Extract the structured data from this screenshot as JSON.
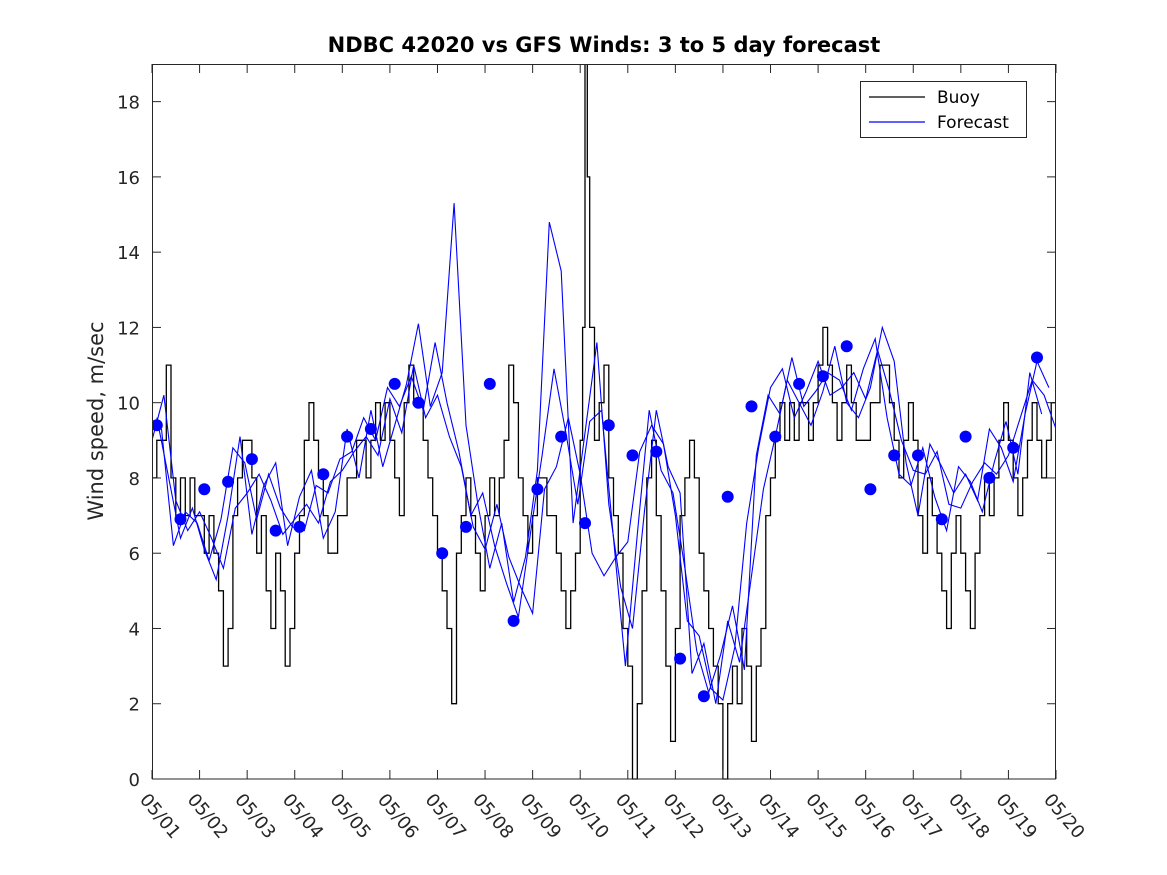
{
  "chart_data": {
    "type": "line",
    "title": "NDBC 42020 vs GFS Winds: 3 to 5 day forecast",
    "xlabel": "",
    "ylabel": "Wind speed, m/sec",
    "xlim": [
      0,
      19
    ],
    "ylim": [
      0,
      19
    ],
    "x_tick_labels": [
      "05/01",
      "05/02",
      "05/03",
      "05/04",
      "05/05",
      "05/06",
      "05/07",
      "05/08",
      "05/09",
      "05/10",
      "05/11",
      "05/12",
      "05/13",
      "05/14",
      "05/15",
      "05/16",
      "05/17",
      "05/18",
      "05/19",
      "05/20"
    ],
    "y_ticks": [
      0,
      2,
      4,
      6,
      8,
      10,
      12,
      14,
      16,
      18
    ],
    "grid": false,
    "legend_position": "top-right",
    "legend": [
      "Buoy",
      "Forecast"
    ],
    "colors": {
      "buoy": "#000000",
      "forecast": "#0000ff",
      "axis": "#262626"
    },
    "series": [
      {
        "name": "Buoy",
        "style": "step",
        "color": "#000000",
        "x": [
          0.0,
          0.1,
          0.2,
          0.3,
          0.4,
          0.5,
          0.6,
          0.7,
          0.8,
          0.9,
          1.0,
          1.1,
          1.2,
          1.3,
          1.4,
          1.5,
          1.6,
          1.7,
          1.8,
          1.9,
          2.0,
          2.1,
          2.2,
          2.3,
          2.4,
          2.5,
          2.6,
          2.7,
          2.8,
          2.9,
          3.0,
          3.1,
          3.2,
          3.3,
          3.4,
          3.5,
          3.6,
          3.7,
          3.8,
          3.9,
          4.0,
          4.1,
          4.2,
          4.3,
          4.4,
          4.5,
          4.6,
          4.7,
          4.8,
          4.9,
          5.0,
          5.1,
          5.2,
          5.3,
          5.4,
          5.5,
          5.6,
          5.7,
          5.8,
          5.9,
          6.0,
          6.1,
          6.2,
          6.3,
          6.4,
          6.5,
          6.6,
          6.7,
          6.8,
          6.9,
          7.0,
          7.1,
          7.2,
          7.3,
          7.4,
          7.5,
          7.6,
          7.7,
          7.8,
          7.9,
          8.0,
          8.1,
          8.2,
          8.3,
          8.4,
          8.5,
          8.6,
          8.7,
          8.8,
          8.9,
          9.0,
          9.05,
          9.1,
          9.15,
          9.2,
          9.3,
          9.4,
          9.5,
          9.6,
          9.7,
          9.8,
          9.9,
          10.0,
          10.1,
          10.2,
          10.3,
          10.4,
          10.5,
          10.6,
          10.7,
          10.8,
          10.9,
          11.0,
          11.1,
          11.2,
          11.3,
          11.4,
          11.5,
          11.6,
          11.7,
          11.8,
          11.9,
          12.0,
          12.1,
          12.2,
          12.3,
          12.4,
          12.5,
          12.6,
          12.7,
          12.8,
          12.9,
          13.0,
          13.1,
          13.2,
          13.3,
          13.4,
          13.5,
          13.6,
          13.7,
          13.8,
          13.9,
          14.0,
          14.1,
          14.2,
          14.3,
          14.4,
          14.5,
          14.6,
          14.7,
          14.8,
          14.9,
          15.0,
          15.1,
          15.2,
          15.3,
          15.4,
          15.5,
          15.6,
          15.7,
          15.8,
          15.9,
          16.0,
          16.1,
          16.2,
          16.3,
          16.4,
          16.5,
          16.6,
          16.7,
          16.8,
          16.9,
          17.0,
          17.1,
          17.2,
          17.3,
          17.4,
          17.5,
          17.6,
          17.7,
          17.8,
          17.9,
          18.0,
          18.1,
          18.2,
          18.3,
          18.4,
          18.5,
          18.6,
          18.7,
          18.8,
          18.9,
          19.0
        ],
        "y": [
          8,
          9,
          9,
          11,
          8,
          7,
          8,
          7,
          8,
          7,
          7,
          6,
          7,
          6,
          5,
          3,
          4,
          7,
          8,
          9,
          9,
          8,
          6,
          7,
          5,
          4,
          6,
          5,
          3,
          4,
          6,
          7,
          9,
          10,
          9,
          8,
          7,
          6,
          6,
          7,
          7,
          8,
          8,
          9,
          9,
          8,
          9,
          10,
          9,
          10,
          9,
          8,
          7,
          10,
          11,
          10,
          10,
          9,
          8,
          7,
          6,
          5,
          4,
          2,
          6,
          7,
          8,
          7,
          6,
          5,
          7,
          8,
          7,
          8,
          9,
          11,
          10,
          8,
          7,
          6,
          7,
          8,
          8,
          7,
          7,
          6,
          5,
          4,
          5,
          6,
          9,
          12,
          19,
          16,
          12,
          9,
          10,
          11,
          8,
          7,
          6,
          4,
          3,
          0,
          2,
          5,
          8,
          9,
          7,
          5,
          3,
          1,
          4,
          7,
          8,
          9,
          8,
          6,
          5,
          4,
          3,
          2,
          0,
          2,
          3,
          2,
          4,
          3,
          1,
          3,
          4,
          7,
          8,
          9,
          10,
          9,
          10,
          9,
          10,
          10,
          9,
          10,
          11,
          12,
          11,
          10,
          9,
          10,
          11,
          10,
          9,
          9,
          9,
          10,
          10,
          11,
          11,
          10,
          9,
          8,
          9,
          10,
          9,
          7,
          6,
          8,
          7,
          6,
          5,
          4,
          6,
          7,
          6,
          5,
          4,
          6,
          7,
          8,
          7,
          8,
          9,
          10,
          9,
          8,
          7,
          8,
          9,
          10,
          9,
          8,
          9,
          10,
          9
        ]
      },
      {
        "name": "Forecast",
        "style": "lines-with-markers",
        "color": "#0000ff",
        "lines": [
          {
            "x": [
              0.0,
              0.25,
              0.5,
              0.75,
              1.0,
              1.25,
              1.5,
              1.75,
              2.0,
              2.25,
              2.5,
              2.75,
              3.0,
              3.25,
              3.5,
              3.75,
              4.0,
              4.25,
              4.5,
              4.75,
              5.0,
              5.25,
              5.5,
              5.75,
              6.0,
              6.25,
              6.5,
              6.75,
              7.0,
              7.25,
              7.5,
              7.75,
              8.0,
              8.25,
              8.5,
              8.75,
              9.0,
              9.25,
              9.5,
              9.75,
              10.0,
              10.25,
              10.5,
              10.75,
              11.0,
              11.25,
              11.5,
              11.75,
              12.0,
              12.25,
              12.5,
              12.75,
              13.0,
              13.25,
              13.5,
              13.75,
              14.0,
              14.25,
              14.5,
              14.75,
              15.0,
              15.25,
              15.5,
              15.75,
              16.0,
              16.25,
              16.5,
              16.75,
              17.0,
              17.25,
              17.5,
              17.75,
              18.0,
              18.25,
              18.5,
              18.75,
              19.0
            ],
            "y": [
              9.0,
              10.2,
              7.4,
              6.6,
              7.1,
              6.4,
              5.6,
              7.2,
              7.6,
              8.1,
              7.4,
              6.5,
              6.9,
              7.3,
              6.8,
              7.9,
              8.2,
              8.7,
              9.1,
              8.6,
              10.1,
              9.2,
              11.0,
              9.6,
              10.2,
              9.1,
              8.3,
              6.7,
              6.1,
              7.3,
              5.9,
              5.1,
              4.4,
              7.7,
              8.3,
              9.6,
              8.1,
              6.0,
              5.4,
              5.9,
              6.3,
              8.7,
              9.4,
              8.9,
              7.0,
              4.2,
              3.8,
              2.4,
              2.1,
              3.5,
              6.8,
              8.8,
              10.4,
              10.9,
              9.6,
              10.3,
              11.1,
              10.2,
              10.4,
              10.8,
              10.1,
              11.4,
              10.3,
              9.0,
              8.2,
              8.1,
              8.7,
              7.3,
              7.2,
              7.9,
              8.4,
              8.1,
              8.6,
              9.6,
              10.6,
              10.2,
              9.3
            ]
          },
          {
            "x": [
              0.1,
              0.35,
              0.6,
              0.85,
              1.1,
              1.35,
              1.6,
              1.85,
              2.1,
              2.35,
              2.6,
              2.85,
              3.1,
              3.35,
              3.6,
              3.85,
              4.1,
              4.35,
              4.6,
              4.85,
              5.1,
              5.35,
              5.6,
              5.85,
              6.1,
              6.35,
              6.6,
              6.85,
              7.1,
              7.35,
              7.6,
              7.85,
              8.1,
              8.35,
              8.6,
              8.85,
              9.1,
              9.35,
              9.6,
              9.85,
              10.1,
              10.35,
              10.6,
              10.85,
              11.1,
              11.35,
              11.6,
              11.85,
              12.1,
              12.35,
              12.6,
              12.85,
              13.1,
              13.35,
              13.6,
              13.85,
              14.1,
              14.35,
              14.6,
              14.85,
              15.1,
              15.35,
              15.6,
              15.85,
              16.1,
              16.35,
              16.6,
              16.85,
              17.1,
              17.35,
              17.6,
              17.85,
              18.1,
              18.35,
              18.6,
              18.85
            ],
            "y": [
              9.6,
              8.0,
              6.4,
              7.2,
              6.1,
              5.3,
              7.0,
              9.1,
              6.5,
              7.8,
              8.4,
              6.2,
              7.5,
              8.2,
              6.4,
              7.1,
              9.3,
              8.0,
              9.8,
              8.3,
              9.4,
              10.5,
              12.1,
              9.9,
              10.8,
              15.3,
              9.4,
              7.3,
              5.6,
              6.8,
              4.7,
              5.9,
              8.2,
              14.8,
              13.5,
              6.8,
              9.2,
              11.6,
              7.3,
              5.1,
              4.0,
              7.1,
              9.8,
              8.3,
              7.6,
              2.8,
              3.6,
              2.0,
              4.2,
              3.1,
              5.4,
              7.7,
              9.1,
              10.6,
              10.0,
              9.4,
              10.3,
              11.5,
              10.0,
              9.6,
              10.4,
              12.0,
              11.1,
              8.4,
              7.0,
              8.9,
              8.3,
              7.6,
              8.1,
              7.4,
              9.3,
              8.8,
              7.9,
              9.7,
              11.1,
              10.4
            ]
          },
          {
            "x": [
              0.2,
              0.45,
              0.7,
              0.95,
              1.2,
              1.45,
              1.7,
              1.95,
              2.2,
              2.45,
              2.7,
              2.95,
              3.2,
              3.45,
              3.7,
              3.95,
              4.2,
              4.45,
              4.7,
              4.95,
              5.2,
              5.45,
              5.7,
              5.95,
              6.2,
              6.45,
              6.7,
              6.95,
              7.2,
              7.45,
              7.7,
              7.95,
              8.2,
              8.45,
              8.7,
              8.95,
              9.2,
              9.45,
              9.7,
              9.95,
              10.2,
              10.45,
              10.7,
              10.95,
              11.2,
              11.45,
              11.7,
              11.95,
              12.2,
              12.45,
              12.7,
              12.95,
              13.2,
              13.45,
              13.7,
              13.95,
              14.2,
              14.45,
              14.7,
              14.95,
              15.2,
              15.45,
              15.7,
              15.95,
              16.2,
              16.45,
              16.7,
              16.95,
              17.2,
              17.45,
              17.7,
              17.95,
              18.2,
              18.45,
              18.7
            ],
            "y": [
              9.3,
              6.2,
              7.1,
              6.8,
              5.8,
              6.9,
              8.8,
              8.4,
              6.9,
              8.1,
              7.2,
              6.7,
              6.6,
              7.8,
              7.6,
              8.5,
              8.7,
              9.6,
              9.0,
              10.4,
              9.9,
              10.7,
              9.8,
              11.6,
              10.0,
              8.7,
              7.0,
              7.6,
              6.2,
              5.2,
              4.3,
              6.5,
              8.6,
              10.9,
              9.2,
              7.3,
              9.5,
              9.8,
              6.4,
              3.0,
              6.5,
              9.8,
              8.2,
              7.6,
              5.6,
              3.4,
              2.3,
              3.3,
              4.6,
              2.9,
              8.6,
              10.2,
              9.7,
              11.2,
              9.9,
              10.3,
              10.8,
              10.6,
              9.8,
              10.9,
              11.7,
              9.6,
              8.1,
              7.8,
              8.8,
              7.5,
              6.6,
              8.3,
              7.9,
              7.1,
              8.4,
              9.5,
              8.1,
              10.8,
              9.7
            ]
          }
        ],
        "markers": {
          "x": [
            0.1,
            0.6,
            1.1,
            1.6,
            2.1,
            2.6,
            3.1,
            3.6,
            4.1,
            4.6,
            5.1,
            5.6,
            6.1,
            6.6,
            7.1,
            7.6,
            8.1,
            8.6,
            9.1,
            9.6,
            10.1,
            10.6,
            11.1,
            11.6,
            12.1,
            12.6,
            13.1,
            13.6,
            14.1,
            14.6,
            15.1,
            15.6,
            16.1,
            16.6,
            17.1,
            17.6,
            18.1,
            18.6
          ],
          "y": [
            9.4,
            6.9,
            7.7,
            7.9,
            8.5,
            6.6,
            6.7,
            8.1,
            9.1,
            9.3,
            10.5,
            10.0,
            6.0,
            6.7,
            10.5,
            4.2,
            7.7,
            9.1,
            6.8,
            9.4,
            8.6,
            8.7,
            3.2,
            2.2,
            7.5,
            9.9,
            9.1,
            10.5,
            10.7,
            11.5,
            7.7,
            8.6,
            8.6,
            6.9,
            9.1,
            8.0,
            8.8,
            11.2
          ]
        }
      }
    ]
  }
}
